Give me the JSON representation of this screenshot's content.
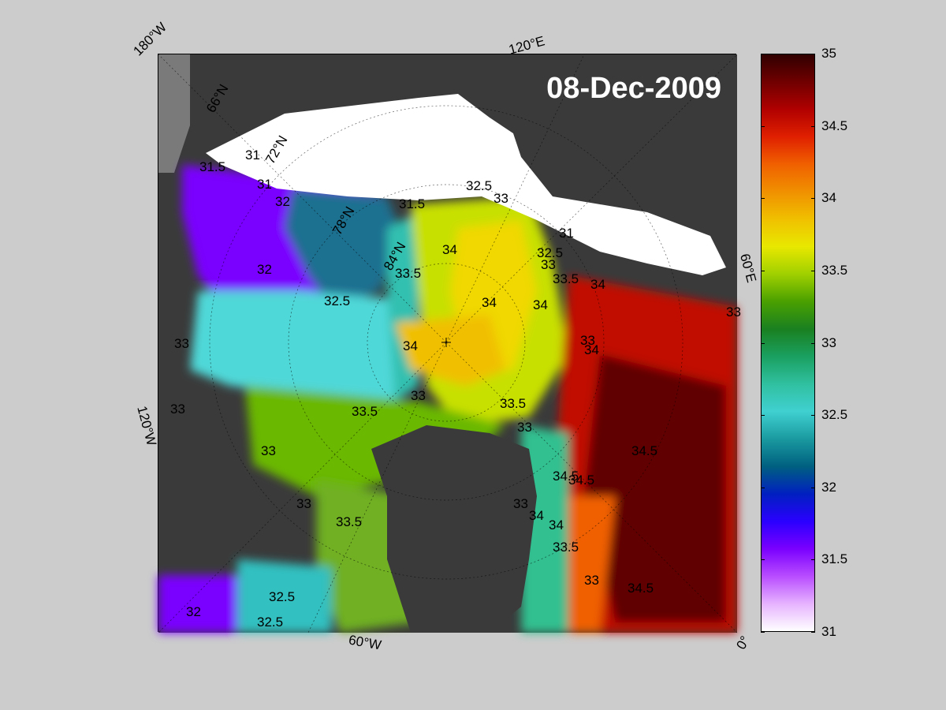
{
  "map": {
    "date_label": "08-Dec-2009",
    "corner_labels": {
      "top_left": "180°W",
      "top": "120°E",
      "right": "60°E",
      "left": "120°W",
      "bottom": "60°W",
      "bottom_right": "0°"
    },
    "latitude_labels": [
      "66°N",
      "72°N",
      "78°N",
      "84°N"
    ],
    "contour_labels": [
      "31.5",
      "31",
      "31",
      "32",
      "31.5",
      "32.5",
      "33",
      "31",
      "32.5",
      "33",
      "33.5",
      "34",
      "32",
      "32.5",
      "33.5",
      "34",
      "34",
      "34",
      "33",
      "34",
      "34",
      "33.5",
      "33",
      "33.5",
      "33",
      "33",
      "33",
      "33.5",
      "33",
      "34.5",
      "34.5",
      "34.5",
      "34",
      "33.5",
      "34.5",
      "33",
      "32.5",
      "32",
      "32.5",
      "33",
      "33",
      "34",
      "33"
    ],
    "colors": {
      "land": "#3a3a3a",
      "ice": "#ffffff",
      "background": "#cccccc"
    }
  },
  "colorbar": {
    "ticks": [
      "35",
      "34.5",
      "34",
      "33.5",
      "33",
      "32.5",
      "32",
      "31.5",
      "31"
    ],
    "min": 31,
    "max": 35,
    "colormap": [
      "#ffffff",
      "#e6b3ff",
      "#b84cff",
      "#7a00ff",
      "#2a00ff",
      "#0020c0",
      "#006080",
      "#1a9aa0",
      "#40d0d0",
      "#30c0a0",
      "#1aa060",
      "#1a8020",
      "#4aa000",
      "#a0d000",
      "#e8e800",
      "#f0c000",
      "#f09000",
      "#f06000",
      "#e02000",
      "#b00000",
      "#700000",
      "#300000"
    ]
  }
}
